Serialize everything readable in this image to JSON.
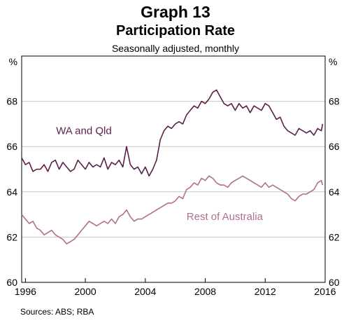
{
  "header": {
    "title": "Graph 13",
    "subtitle": "Participation Rate",
    "note": "Seasonally adjusted, monthly"
  },
  "footer": {
    "source": "Sources:  ABS; RBA"
  },
  "colors": {
    "wa_qld": "#5b1f4a",
    "rest_of_australia": "#b06f93",
    "grid": "#c8c8c8",
    "axis": "#000000"
  },
  "chart_data": {
    "type": "line",
    "title": "Participation Rate",
    "ylabel_left": "%",
    "ylabel_right": "%",
    "xlim": [
      1995.75,
      2016
    ],
    "ylim": [
      60,
      70
    ],
    "yticks": [
      60,
      62,
      64,
      66,
      68
    ],
    "xticks": [
      1996,
      2000,
      2004,
      2008,
      2012,
      2016
    ],
    "grid": true,
    "series": [
      {
        "name": "WA and Qld",
        "color": "#5b1f4a",
        "points": [
          [
            1995.75,
            65.5
          ],
          [
            1996.0,
            65.2
          ],
          [
            1996.25,
            65.3
          ],
          [
            1996.5,
            64.9
          ],
          [
            1996.75,
            65.0
          ],
          [
            1997.0,
            65.0
          ],
          [
            1997.25,
            65.2
          ],
          [
            1997.5,
            64.9
          ],
          [
            1997.75,
            65.3
          ],
          [
            1998.0,
            65.4
          ],
          [
            1998.25,
            65.0
          ],
          [
            1998.5,
            65.3
          ],
          [
            1998.75,
            65.1
          ],
          [
            1999.0,
            64.9
          ],
          [
            1999.25,
            65.0
          ],
          [
            1999.5,
            65.4
          ],
          [
            1999.75,
            65.2
          ],
          [
            2000.0,
            65.0
          ],
          [
            2000.25,
            65.3
          ],
          [
            2000.5,
            65.1
          ],
          [
            2000.75,
            65.2
          ],
          [
            2001.0,
            65.1
          ],
          [
            2001.25,
            65.5
          ],
          [
            2001.5,
            65.0
          ],
          [
            2001.75,
            65.3
          ],
          [
            2002.0,
            65.2
          ],
          [
            2002.25,
            65.4
          ],
          [
            2002.5,
            65.1
          ],
          [
            2002.75,
            66.0
          ],
          [
            2003.0,
            65.2
          ],
          [
            2003.25,
            65.0
          ],
          [
            2003.5,
            65.1
          ],
          [
            2003.75,
            64.8
          ],
          [
            2004.0,
            65.1
          ],
          [
            2004.25,
            64.7
          ],
          [
            2004.5,
            65.0
          ],
          [
            2004.75,
            65.4
          ],
          [
            2005.0,
            66.3
          ],
          [
            2005.25,
            66.7
          ],
          [
            2005.5,
            66.9
          ],
          [
            2005.75,
            66.8
          ],
          [
            2006.0,
            67.0
          ],
          [
            2006.25,
            67.1
          ],
          [
            2006.5,
            67.0
          ],
          [
            2006.75,
            67.4
          ],
          [
            2007.0,
            67.6
          ],
          [
            2007.25,
            67.8
          ],
          [
            2007.5,
            67.7
          ],
          [
            2007.75,
            68.0
          ],
          [
            2008.0,
            67.9
          ],
          [
            2008.25,
            68.1
          ],
          [
            2008.5,
            68.4
          ],
          [
            2008.75,
            68.5
          ],
          [
            2009.0,
            68.2
          ],
          [
            2009.25,
            67.9
          ],
          [
            2009.5,
            67.8
          ],
          [
            2009.75,
            67.9
          ],
          [
            2010.0,
            67.6
          ],
          [
            2010.25,
            67.9
          ],
          [
            2010.5,
            67.7
          ],
          [
            2010.75,
            67.8
          ],
          [
            2011.0,
            67.5
          ],
          [
            2011.25,
            67.8
          ],
          [
            2011.5,
            67.7
          ],
          [
            2011.75,
            67.6
          ],
          [
            2012.0,
            67.9
          ],
          [
            2012.25,
            67.8
          ],
          [
            2012.5,
            67.5
          ],
          [
            2012.75,
            67.2
          ],
          [
            2013.0,
            67.3
          ],
          [
            2013.25,
            66.9
          ],
          [
            2013.5,
            66.7
          ],
          [
            2013.75,
            66.6
          ],
          [
            2014.0,
            66.5
          ],
          [
            2014.25,
            66.8
          ],
          [
            2014.5,
            66.7
          ],
          [
            2014.75,
            66.6
          ],
          [
            2015.0,
            66.7
          ],
          [
            2015.25,
            66.5
          ],
          [
            2015.5,
            66.8
          ],
          [
            2015.75,
            66.7
          ],
          [
            2015.83,
            67.0
          ]
        ]
      },
      {
        "name": "Rest of Australia",
        "color": "#b06f93",
        "points": [
          [
            1995.75,
            63.0
          ],
          [
            1996.0,
            62.8
          ],
          [
            1996.25,
            62.6
          ],
          [
            1996.5,
            62.7
          ],
          [
            1996.75,
            62.4
          ],
          [
            1997.0,
            62.3
          ],
          [
            1997.25,
            62.1
          ],
          [
            1997.5,
            62.2
          ],
          [
            1997.75,
            62.3
          ],
          [
            1998.0,
            62.1
          ],
          [
            1998.25,
            62.0
          ],
          [
            1998.5,
            61.9
          ],
          [
            1998.75,
            61.7
          ],
          [
            1999.0,
            61.8
          ],
          [
            1999.25,
            61.9
          ],
          [
            1999.5,
            62.1
          ],
          [
            1999.75,
            62.3
          ],
          [
            2000.0,
            62.5
          ],
          [
            2000.25,
            62.7
          ],
          [
            2000.5,
            62.6
          ],
          [
            2000.75,
            62.5
          ],
          [
            2001.0,
            62.6
          ],
          [
            2001.25,
            62.7
          ],
          [
            2001.5,
            62.6
          ],
          [
            2001.75,
            62.8
          ],
          [
            2002.0,
            62.6
          ],
          [
            2002.25,
            62.9
          ],
          [
            2002.5,
            63.0
          ],
          [
            2002.75,
            63.2
          ],
          [
            2003.0,
            62.9
          ],
          [
            2003.25,
            62.7
          ],
          [
            2003.5,
            62.8
          ],
          [
            2003.75,
            62.8
          ],
          [
            2004.0,
            62.9
          ],
          [
            2004.25,
            63.0
          ],
          [
            2004.5,
            63.1
          ],
          [
            2004.75,
            63.2
          ],
          [
            2005.0,
            63.3
          ],
          [
            2005.25,
            63.4
          ],
          [
            2005.5,
            63.5
          ],
          [
            2005.75,
            63.5
          ],
          [
            2006.0,
            63.6
          ],
          [
            2006.25,
            63.8
          ],
          [
            2006.5,
            63.7
          ],
          [
            2006.75,
            64.1
          ],
          [
            2007.0,
            64.2
          ],
          [
            2007.25,
            64.4
          ],
          [
            2007.5,
            64.3
          ],
          [
            2007.75,
            64.6
          ],
          [
            2008.0,
            64.5
          ],
          [
            2008.25,
            64.7
          ],
          [
            2008.5,
            64.6
          ],
          [
            2008.75,
            64.4
          ],
          [
            2009.0,
            64.3
          ],
          [
            2009.25,
            64.3
          ],
          [
            2009.5,
            64.2
          ],
          [
            2009.75,
            64.4
          ],
          [
            2010.0,
            64.5
          ],
          [
            2010.25,
            64.6
          ],
          [
            2010.5,
            64.7
          ],
          [
            2010.75,
            64.6
          ],
          [
            2011.0,
            64.5
          ],
          [
            2011.25,
            64.4
          ],
          [
            2011.5,
            64.3
          ],
          [
            2011.75,
            64.2
          ],
          [
            2012.0,
            64.4
          ],
          [
            2012.25,
            64.2
          ],
          [
            2012.5,
            64.3
          ],
          [
            2012.75,
            64.2
          ],
          [
            2013.0,
            64.1
          ],
          [
            2013.25,
            64.0
          ],
          [
            2013.5,
            63.9
          ],
          [
            2013.75,
            63.7
          ],
          [
            2014.0,
            63.6
          ],
          [
            2014.25,
            63.8
          ],
          [
            2014.5,
            63.9
          ],
          [
            2014.75,
            63.9
          ],
          [
            2015.0,
            64.0
          ],
          [
            2015.25,
            64.1
          ],
          [
            2015.5,
            64.4
          ],
          [
            2015.75,
            64.5
          ],
          [
            2015.83,
            64.3
          ]
        ]
      }
    ]
  }
}
